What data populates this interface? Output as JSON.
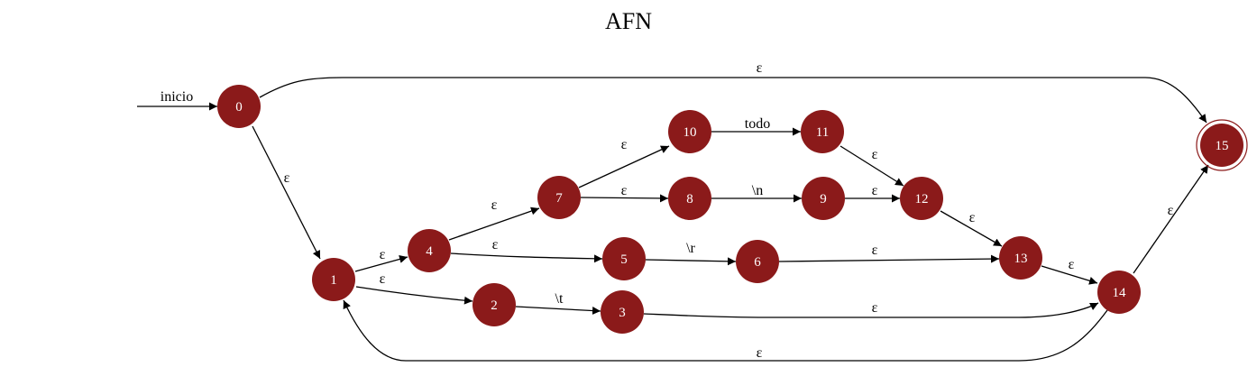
{
  "title": "AFN",
  "colors": {
    "node": "#8b1a1a",
    "node_text": "#ffffff",
    "edge": "#000000"
  },
  "start_label": "inicio",
  "states": [
    "0",
    "1",
    "2",
    "3",
    "4",
    "5",
    "6",
    "7",
    "8",
    "9",
    "10",
    "11",
    "12",
    "13",
    "14",
    "15"
  ],
  "initial_state": "0",
  "accepting_states": [
    "15"
  ],
  "transitions": [
    {
      "from": "0",
      "to": "15",
      "label": "ε"
    },
    {
      "from": "0",
      "to": "1",
      "label": "ε"
    },
    {
      "from": "1",
      "to": "4",
      "label": "ε"
    },
    {
      "from": "1",
      "to": "2",
      "label": "ε"
    },
    {
      "from": "4",
      "to": "7",
      "label": "ε"
    },
    {
      "from": "4",
      "to": "5",
      "label": "ε"
    },
    {
      "from": "7",
      "to": "10",
      "label": "ε"
    },
    {
      "from": "7",
      "to": "8",
      "label": "ε"
    },
    {
      "from": "10",
      "to": "11",
      "label": "todo"
    },
    {
      "from": "8",
      "to": "9",
      "label": "\\n"
    },
    {
      "from": "11",
      "to": "12",
      "label": "ε"
    },
    {
      "from": "9",
      "to": "12",
      "label": "ε"
    },
    {
      "from": "12",
      "to": "13",
      "label": "ε"
    },
    {
      "from": "5",
      "to": "6",
      "label": "\\r"
    },
    {
      "from": "6",
      "to": "13",
      "label": "ε"
    },
    {
      "from": "2",
      "to": "3",
      "label": "\\t"
    },
    {
      "from": "3",
      "to": "14",
      "label": "ε"
    },
    {
      "from": "13",
      "to": "14",
      "label": "ε"
    },
    {
      "from": "14",
      "to": "15",
      "label": "ε"
    },
    {
      "from": "14",
      "to": "1",
      "label": "ε"
    }
  ]
}
